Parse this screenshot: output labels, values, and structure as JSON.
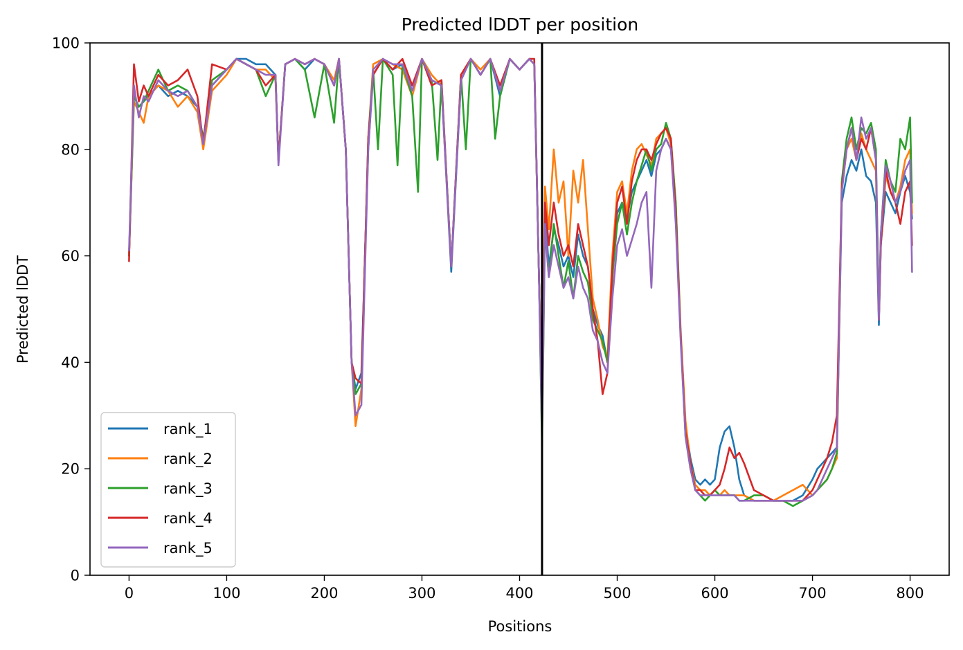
{
  "chart_data": {
    "type": "line",
    "title": "Predicted lDDT per position",
    "xlabel": "Positions",
    "ylabel": "Predicted lDDT",
    "xlim": [
      -40,
      840
    ],
    "ylim": [
      0,
      100
    ],
    "xticks": [
      0,
      100,
      200,
      300,
      400,
      500,
      600,
      700,
      800
    ],
    "yticks": [
      0,
      20,
      40,
      60,
      80,
      100
    ],
    "grid": false,
    "legend_position": "lower-left",
    "chain_boundary_x": 423,
    "series": [
      {
        "name": "rank_1",
        "color": "#1f77b4",
        "x": [
          0,
          5,
          10,
          15,
          20,
          30,
          40,
          50,
          60,
          70,
          76,
          85,
          100,
          110,
          120,
          130,
          140,
          150,
          153,
          160,
          170,
          180,
          190,
          200,
          210,
          215,
          222,
          228,
          232,
          238,
          245,
          250,
          260,
          270,
          280,
          290,
          300,
          310,
          320,
          330,
          340,
          350,
          360,
          370,
          380,
          390,
          400,
          410,
          415,
          420,
          423,
          426,
          430,
          435,
          440,
          445,
          450,
          455,
          460,
          465,
          470,
          475,
          480,
          485,
          490,
          495,
          500,
          505,
          510,
          515,
          520,
          525,
          530,
          535,
          540,
          545,
          550,
          555,
          560,
          565,
          570,
          575,
          580,
          585,
          590,
          595,
          600,
          605,
          610,
          615,
          620,
          625,
          630,
          640,
          650,
          660,
          670,
          680,
          690,
          700,
          705,
          710,
          715,
          720,
          725,
          730,
          735,
          740,
          745,
          750,
          755,
          760,
          765,
          768,
          770,
          775,
          780,
          785,
          790,
          795,
          800,
          802
        ],
        "y": [
          60,
          90,
          88,
          89,
          90,
          92,
          90,
          91,
          90,
          88,
          82,
          92,
          95,
          97,
          97,
          96,
          96,
          94,
          78,
          96,
          97,
          95,
          97,
          96,
          92,
          97,
          80,
          40,
          35,
          38,
          80,
          94,
          97,
          95,
          96,
          91,
          97,
          93,
          92,
          57,
          93,
          97,
          94,
          97,
          90,
          97,
          95,
          97,
          96,
          55,
          30,
          68,
          58,
          65,
          62,
          58,
          60,
          56,
          64,
          60,
          58,
          50,
          47,
          45,
          40,
          58,
          68,
          70,
          67,
          72,
          74,
          76,
          78,
          75,
          79,
          80,
          82,
          80,
          68,
          45,
          28,
          22,
          18,
          17,
          18,
          17,
          18,
          24,
          27,
          28,
          24,
          18,
          15,
          14,
          14,
          14,
          14,
          14,
          15,
          18,
          20,
          21,
          22,
          23,
          24,
          70,
          75,
          78,
          76,
          80,
          75,
          74,
          70,
          47,
          62,
          72,
          70,
          68,
          72,
          75,
          72,
          67
        ]
      },
      {
        "name": "rank_2",
        "color": "#ff7f0e",
        "x": [
          0,
          5,
          10,
          15,
          20,
          30,
          40,
          50,
          60,
          70,
          76,
          85,
          100,
          110,
          120,
          130,
          140,
          150,
          153,
          160,
          170,
          180,
          190,
          200,
          210,
          215,
          222,
          228,
          232,
          238,
          245,
          250,
          260,
          270,
          280,
          290,
          300,
          310,
          320,
          330,
          340,
          350,
          360,
          370,
          380,
          390,
          400,
          410,
          415,
          420,
          423,
          426,
          430,
          435,
          440,
          445,
          450,
          455,
          460,
          465,
          470,
          475,
          480,
          485,
          490,
          495,
          500,
          505,
          510,
          515,
          520,
          525,
          530,
          535,
          540,
          545,
          550,
          555,
          560,
          565,
          570,
          575,
          580,
          585,
          590,
          595,
          600,
          605,
          610,
          615,
          620,
          625,
          630,
          640,
          650,
          660,
          670,
          680,
          690,
          700,
          705,
          710,
          715,
          720,
          725,
          730,
          735,
          740,
          745,
          750,
          755,
          760,
          765,
          768,
          770,
          775,
          780,
          785,
          790,
          795,
          800,
          802
        ],
        "y": [
          60,
          89,
          87,
          85,
          90,
          92,
          91,
          88,
          90,
          87,
          80,
          91,
          94,
          97,
          96,
          95,
          95,
          93,
          78,
          96,
          97,
          96,
          97,
          96,
          93,
          97,
          80,
          40,
          28,
          35,
          82,
          96,
          97,
          96,
          95,
          90,
          97,
          94,
          92,
          58,
          94,
          97,
          95,
          97,
          91,
          97,
          95,
          97,
          96,
          55,
          32,
          73,
          65,
          80,
          70,
          74,
          60,
          76,
          70,
          78,
          65,
          52,
          48,
          43,
          41,
          60,
          72,
          74,
          68,
          76,
          80,
          81,
          79,
          77,
          82,
          83,
          84,
          81,
          70,
          46,
          29,
          21,
          17,
          16,
          16,
          15,
          16,
          15,
          16,
          15,
          15,
          15,
          15,
          14,
          14,
          14,
          15,
          16,
          17,
          15,
          16,
          17,
          18,
          20,
          22,
          72,
          80,
          82,
          78,
          83,
          80,
          78,
          76,
          48,
          62,
          75,
          72,
          70,
          73,
          78,
          80,
          68
        ]
      },
      {
        "name": "rank_3",
        "color": "#2ca02c",
        "x": [
          0,
          5,
          10,
          15,
          20,
          30,
          40,
          50,
          60,
          70,
          76,
          85,
          100,
          110,
          120,
          130,
          140,
          150,
          153,
          160,
          170,
          180,
          190,
          200,
          210,
          215,
          222,
          228,
          232,
          238,
          245,
          250,
          255,
          260,
          270,
          275,
          280,
          290,
          296,
          300,
          310,
          316,
          320,
          330,
          340,
          345,
          350,
          360,
          370,
          375,
          380,
          390,
          400,
          410,
          415,
          420,
          423,
          426,
          430,
          435,
          440,
          445,
          450,
          455,
          460,
          465,
          470,
          475,
          480,
          485,
          490,
          495,
          500,
          505,
          510,
          515,
          520,
          525,
          530,
          535,
          540,
          545,
          550,
          555,
          560,
          565,
          570,
          575,
          580,
          585,
          590,
          595,
          600,
          605,
          610,
          615,
          620,
          625,
          630,
          640,
          650,
          660,
          670,
          680,
          690,
          700,
          705,
          710,
          715,
          720,
          725,
          730,
          735,
          740,
          745,
          750,
          755,
          760,
          765,
          768,
          770,
          775,
          780,
          785,
          790,
          795,
          800,
          802
        ],
        "y": [
          60,
          90,
          88,
          89,
          91,
          95,
          91,
          92,
          91,
          88,
          82,
          93,
          95,
          97,
          96,
          95,
          90,
          94,
          78,
          96,
          97,
          95,
          86,
          96,
          85,
          97,
          80,
          40,
          34,
          36,
          82,
          95,
          80,
          97,
          94,
          77,
          96,
          90,
          72,
          97,
          93,
          78,
          93,
          58,
          94,
          80,
          97,
          94,
          97,
          82,
          90,
          97,
          95,
          97,
          96,
          55,
          24,
          65,
          56,
          66,
          60,
          54,
          59,
          52,
          60,
          57,
          55,
          48,
          46,
          44,
          40,
          56,
          66,
          70,
          64,
          70,
          74,
          77,
          80,
          76,
          80,
          81,
          85,
          82,
          70,
          45,
          26,
          20,
          16,
          15,
          14,
          15,
          16,
          15,
          15,
          15,
          15,
          14,
          14,
          15,
          15,
          14,
          14,
          13,
          14,
          15,
          16,
          17,
          18,
          20,
          23,
          74,
          82,
          86,
          80,
          84,
          83,
          85,
          80,
          49,
          64,
          78,
          74,
          72,
          82,
          80,
          86,
          70
        ]
      },
      {
        "name": "rank_4",
        "color": "#d62728",
        "x": [
          0,
          5,
          10,
          15,
          20,
          30,
          40,
          50,
          60,
          70,
          76,
          85,
          100,
          110,
          120,
          130,
          140,
          150,
          153,
          160,
          170,
          180,
          190,
          200,
          210,
          215,
          222,
          228,
          232,
          238,
          245,
          250,
          260,
          270,
          280,
          290,
          300,
          310,
          320,
          330,
          340,
          350,
          360,
          370,
          380,
          390,
          400,
          410,
          415,
          420,
          423,
          426,
          430,
          435,
          440,
          445,
          450,
          455,
          460,
          465,
          470,
          475,
          480,
          485,
          490,
          495,
          500,
          505,
          510,
          515,
          520,
          525,
          530,
          535,
          540,
          545,
          550,
          555,
          560,
          565,
          570,
          575,
          580,
          585,
          590,
          595,
          600,
          605,
          610,
          615,
          620,
          625,
          630,
          640,
          650,
          660,
          670,
          680,
          690,
          700,
          705,
          710,
          715,
          720,
          725,
          730,
          735,
          740,
          745,
          750,
          755,
          760,
          765,
          768,
          770,
          775,
          780,
          785,
          790,
          795,
          800,
          802
        ],
        "y": [
          59,
          96,
          89,
          92,
          90,
          94,
          92,
          93,
          95,
          90,
          81,
          96,
          95,
          97,
          96,
          95,
          92,
          94,
          78,
          96,
          97,
          96,
          97,
          96,
          92,
          97,
          80,
          40,
          37,
          36,
          82,
          94,
          97,
          95,
          97,
          92,
          97,
          92,
          93,
          58,
          94,
          97,
          94,
          97,
          92,
          97,
          95,
          97,
          97,
          55,
          32,
          70,
          62,
          70,
          64,
          60,
          62,
          58,
          66,
          62,
          58,
          50,
          44,
          34,
          38,
          58,
          70,
          73,
          66,
          74,
          78,
          80,
          80,
          78,
          81,
          83,
          84,
          82,
          68,
          45,
          27,
          21,
          16,
          16,
          15,
          15,
          16,
          17,
          20,
          24,
          22,
          23,
          21,
          16,
          15,
          14,
          14,
          14,
          14,
          16,
          18,
          20,
          22,
          25,
          30,
          73,
          80,
          84,
          78,
          82,
          80,
          84,
          78,
          48,
          62,
          76,
          72,
          70,
          66,
          72,
          74,
          62
        ]
      },
      {
        "name": "rank_5",
        "color": "#9467bd",
        "x": [
          0,
          5,
          10,
          15,
          20,
          30,
          40,
          50,
          60,
          70,
          76,
          85,
          100,
          110,
          120,
          130,
          140,
          150,
          153,
          160,
          170,
          180,
          190,
          200,
          210,
          215,
          222,
          228,
          232,
          238,
          245,
          250,
          260,
          270,
          280,
          290,
          300,
          310,
          320,
          330,
          340,
          350,
          360,
          370,
          380,
          390,
          400,
          410,
          415,
          420,
          423,
          426,
          430,
          435,
          440,
          445,
          450,
          455,
          460,
          465,
          470,
          475,
          480,
          485,
          490,
          495,
          500,
          505,
          510,
          515,
          520,
          525,
          530,
          535,
          540,
          545,
          550,
          555,
          560,
          565,
          570,
          575,
          580,
          585,
          590,
          595,
          600,
          605,
          610,
          615,
          620,
          625,
          630,
          640,
          650,
          660,
          670,
          680,
          690,
          700,
          705,
          710,
          715,
          720,
          725,
          730,
          735,
          740,
          745,
          750,
          755,
          760,
          765,
          768,
          770,
          775,
          780,
          785,
          790,
          795,
          800,
          802
        ],
        "y": [
          61,
          92,
          86,
          90,
          89,
          93,
          91,
          90,
          91,
          88,
          81,
          92,
          95,
          97,
          96,
          95,
          94,
          94,
          77,
          96,
          97,
          96,
          97,
          96,
          92,
          97,
          80,
          40,
          30,
          32,
          80,
          95,
          97,
          96,
          96,
          91,
          97,
          93,
          92,
          58,
          93,
          97,
          94,
          97,
          91,
          97,
          95,
          97,
          96,
          55,
          26,
          66,
          56,
          62,
          58,
          54,
          56,
          52,
          58,
          54,
          52,
          46,
          44,
          40,
          38,
          52,
          62,
          65,
          60,
          63,
          66,
          70,
          72,
          54,
          76,
          80,
          82,
          80,
          66,
          44,
          26,
          20,
          16,
          15,
          15,
          15,
          15,
          15,
          15,
          15,
          15,
          14,
          14,
          14,
          14,
          14,
          14,
          14,
          14,
          15,
          16,
          18,
          20,
          22,
          24,
          72,
          80,
          84,
          78,
          86,
          82,
          84,
          78,
          48,
          64,
          77,
          74,
          70,
          72,
          76,
          78,
          57
        ]
      }
    ]
  }
}
